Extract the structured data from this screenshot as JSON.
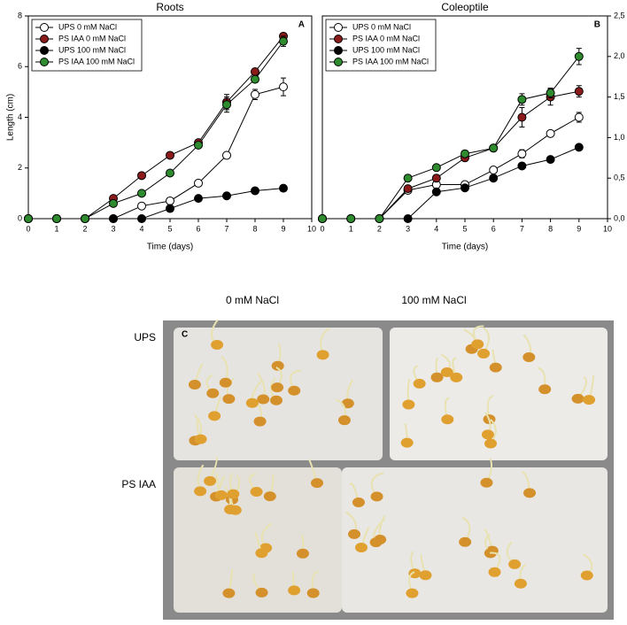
{
  "chart_data": [
    {
      "type": "line",
      "title": "Roots",
      "letter": "A",
      "ylabel": "Length (cm)",
      "xlabel": "Time (days)",
      "yaxis": "left",
      "legend": "upper left",
      "xlim": [
        0,
        10
      ],
      "xticks": [
        0,
        1,
        2,
        3,
        4,
        5,
        6,
        7,
        8,
        9,
        10
      ],
      "ylim": [
        0,
        8
      ],
      "yticks": [
        0,
        2,
        4,
        6,
        8
      ],
      "x": [
        0,
        1,
        2,
        3,
        4,
        5,
        6,
        7,
        8,
        9
      ],
      "series": [
        {
          "name": "UPS 0 mM NaCl",
          "color": "#ffffff",
          "values": [
            0,
            0,
            0,
            0,
            0.5,
            0.7,
            1.4,
            2.5,
            4.9,
            5.2
          ],
          "errors": [
            null,
            null,
            null,
            null,
            null,
            null,
            null,
            null,
            0.2,
            0.35
          ]
        },
        {
          "name": "PS IAA 0 mM NaCl",
          "color": "#8b1a1a",
          "values": [
            0,
            0,
            0,
            0.8,
            1.7,
            2.5,
            3.0,
            4.6,
            5.8,
            7.2
          ],
          "errors": [
            null,
            null,
            null,
            null,
            null,
            null,
            null,
            0.3,
            null,
            null
          ]
        },
        {
          "name": "UPS 100 mM NaCl",
          "color": "#000000",
          "values": [
            0,
            0,
            0,
            0,
            0,
            0.4,
            0.8,
            0.9,
            1.1,
            1.2
          ],
          "errors": [
            null,
            null,
            null,
            null,
            null,
            null,
            null,
            null,
            null,
            null
          ]
        },
        {
          "name": "PS IAA 100 mM NaCl",
          "color": "#2e8b2e",
          "values": [
            0,
            0,
            0,
            0.6,
            1.0,
            1.8,
            2.9,
            4.5,
            5.5,
            7.0
          ],
          "errors": [
            null,
            null,
            null,
            null,
            null,
            null,
            null,
            0.3,
            null,
            0.2
          ]
        }
      ]
    },
    {
      "type": "line",
      "title": "Coleoptile",
      "letter": "B",
      "xlabel": "Time (days)",
      "yaxis": "right",
      "legend": "upper left",
      "xlim": [
        0,
        10
      ],
      "xticks": [
        0,
        1,
        2,
        3,
        4,
        5,
        6,
        7,
        8,
        9,
        10
      ],
      "ylim": [
        0,
        2.5
      ],
      "yticks": [
        {
          "value": 0,
          "label": "0,0"
        },
        {
          "value": 0.5,
          "label": "0,5"
        },
        {
          "value": 1,
          "label": "1,0"
        },
        {
          "value": 1.5,
          "label": "1,5"
        },
        {
          "value": 2,
          "label": "2,0"
        },
        {
          "value": 2.5,
          "label": "2,5"
        }
      ],
      "x": [
        0,
        1,
        2,
        3,
        4,
        5,
        6,
        7,
        8,
        9
      ],
      "series": [
        {
          "name": "UPS 0 mM NaCl",
          "color": "#ffffff",
          "values": [
            0,
            0,
            0,
            0.35,
            0.42,
            0.42,
            0.6,
            0.8,
            1.05,
            1.25
          ],
          "errors": [
            null,
            null,
            null,
            null,
            null,
            null,
            null,
            0.05,
            null,
            0.06
          ]
        },
        {
          "name": "PS IAA 0 mM NaCl",
          "color": "#8b1a1a",
          "values": [
            0,
            0,
            0,
            0.37,
            0.5,
            0.75,
            0.87,
            1.25,
            1.5,
            1.57
          ],
          "errors": [
            null,
            null,
            null,
            null,
            null,
            null,
            null,
            0.12,
            0.1,
            0.07
          ]
        },
        {
          "name": "UPS 100 mM NaCl",
          "color": "#000000",
          "values": [
            0,
            0,
            0,
            0,
            0.33,
            0.38,
            0.5,
            0.65,
            0.73,
            0.88
          ],
          "errors": [
            null,
            null,
            null,
            null,
            null,
            null,
            null,
            null,
            null,
            null
          ]
        },
        {
          "name": "PS IAA 100 mM NaCl",
          "color": "#2e8b2e",
          "values": [
            0,
            0,
            0,
            0.5,
            0.63,
            0.8,
            0.87,
            1.47,
            1.55,
            2.0
          ],
          "errors": [
            null,
            null,
            null,
            null,
            null,
            null,
            null,
            0.07,
            0.06,
            0.1
          ]
        }
      ]
    }
  ],
  "photo": {
    "letter": "C",
    "columns": [
      "0 mM NaCl",
      "100 mM NaCl"
    ],
    "rows": [
      "UPS",
      "PS IAA"
    ]
  }
}
